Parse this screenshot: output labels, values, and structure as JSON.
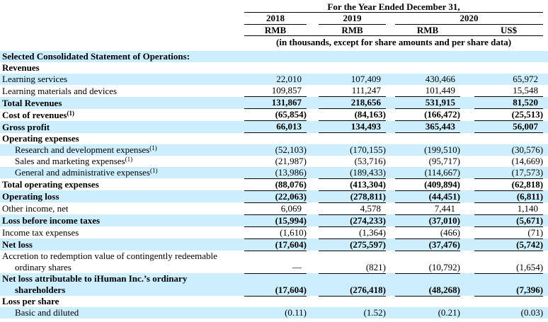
{
  "header": {
    "title": "For the Year Ended December 31,",
    "years": [
      "2018",
      "2019",
      "2020"
    ],
    "currencies": [
      "RMB",
      "RMB",
      "RMB",
      "US$"
    ],
    "units_note": "(in thousands, except for share amounts and per share data)"
  },
  "colors": {
    "row_highlight": "#cceeff",
    "rule": "#000000",
    "text": "#000000"
  },
  "table": {
    "rows": [
      {
        "label": "Selected Consolidated Statement of Operations:",
        "bold": true,
        "shade": true,
        "values": [
          "",
          "",
          "",
          ""
        ]
      },
      {
        "label": "Revenues",
        "bold": true,
        "shade": false,
        "values": [
          "",
          "",
          "",
          ""
        ]
      },
      {
        "label": "Learning services",
        "shade": true,
        "values": [
          "22,010",
          "107,409",
          "430,466",
          "65,972"
        ]
      },
      {
        "label": "Learning materials and devices",
        "shade": false,
        "rule": true,
        "values": [
          "109,857",
          "111,247",
          "101,449",
          "15,548"
        ]
      },
      {
        "label": "Total Revenues",
        "bold": true,
        "shade": true,
        "rule": true,
        "values": [
          "131,867",
          "218,656",
          "531,915",
          "81,520"
        ]
      },
      {
        "label": "Cost of revenues",
        "sup": "(1)",
        "bold": true,
        "shade": false,
        "rule": true,
        "values": [
          "(65,854)",
          "(84,163)",
          "(166,472)",
          "(25,513)"
        ]
      },
      {
        "label": "Gross profit",
        "bold": true,
        "shade": true,
        "rule": true,
        "values": [
          "66,013",
          "134,493",
          "365,443",
          "56,007"
        ]
      },
      {
        "label": "Operating expenses",
        "bold": true,
        "shade": false,
        "values": [
          "",
          "",
          "",
          ""
        ]
      },
      {
        "label": "Research and development expenses",
        "sup": "(1)",
        "indent": true,
        "shade": true,
        "values": [
          "(52,103)",
          "(170,155)",
          "(199,510)",
          "(30,576)"
        ]
      },
      {
        "label": "Sales and marketing expenses",
        "sup": "(1)",
        "indent": true,
        "shade": false,
        "values": [
          "(21,987)",
          "(53,716)",
          "(95,717)",
          "(14,669)"
        ]
      },
      {
        "label": "General and administrative expenses",
        "sup": "(1)",
        "indent": true,
        "shade": true,
        "rule": true,
        "values": [
          "(13,986)",
          "(189,433)",
          "(114,667)",
          "(17,573)"
        ]
      },
      {
        "label": "Total operating expenses",
        "bold": true,
        "shade": false,
        "rule": true,
        "values": [
          "(88,076)",
          "(413,304)",
          "(409,894)",
          "(62,818)"
        ]
      },
      {
        "label": "Operating loss",
        "bold": true,
        "shade": true,
        "rule": true,
        "values": [
          "(22,063)",
          "(278,811)",
          "(44,451)",
          "(6,811)"
        ]
      },
      {
        "label": "Other income, net",
        "shade": false,
        "rule": true,
        "values": [
          "6,069",
          "4,578",
          "7,441",
          "1,140"
        ]
      },
      {
        "label": "Loss before income taxes",
        "bold": true,
        "shade": true,
        "rule": true,
        "values": [
          "(15,994)",
          "(274,233)",
          "(37,010)",
          "(5,671)"
        ]
      },
      {
        "label": "Income tax expenses",
        "shade": false,
        "rule": true,
        "values": [
          "(1,610)",
          "(1,364)",
          "(466)",
          "(71)"
        ]
      },
      {
        "label": "Net loss",
        "bold": true,
        "shade": true,
        "rule": true,
        "values": [
          "(17,604)",
          "(275,597)",
          "(37,476)",
          "(5,742)"
        ]
      },
      {
        "lines": [
          "Accretion to redemption value of contingently redeemable",
          "ordinary shares"
        ],
        "shade": false,
        "rule": true,
        "values": [
          "—",
          "(821)",
          "(10,792)",
          "(1,654)"
        ]
      },
      {
        "lines": [
          "Net loss attributable to iHuman Inc.’s ordinary",
          "shareholders"
        ],
        "bold": true,
        "shade": true,
        "rule": true,
        "values": [
          "(17,604)",
          "(276,418)",
          "(48,268)",
          "(7,396)"
        ]
      },
      {
        "label": "Loss per share",
        "bold": true,
        "shade": false,
        "values": [
          "",
          "",
          "",
          ""
        ]
      },
      {
        "label": "Basic and diluted",
        "indent": true,
        "shade": true,
        "values": [
          "(0.11)",
          "(1.52)",
          "(0.21)",
          "(0.03)"
        ]
      }
    ]
  }
}
